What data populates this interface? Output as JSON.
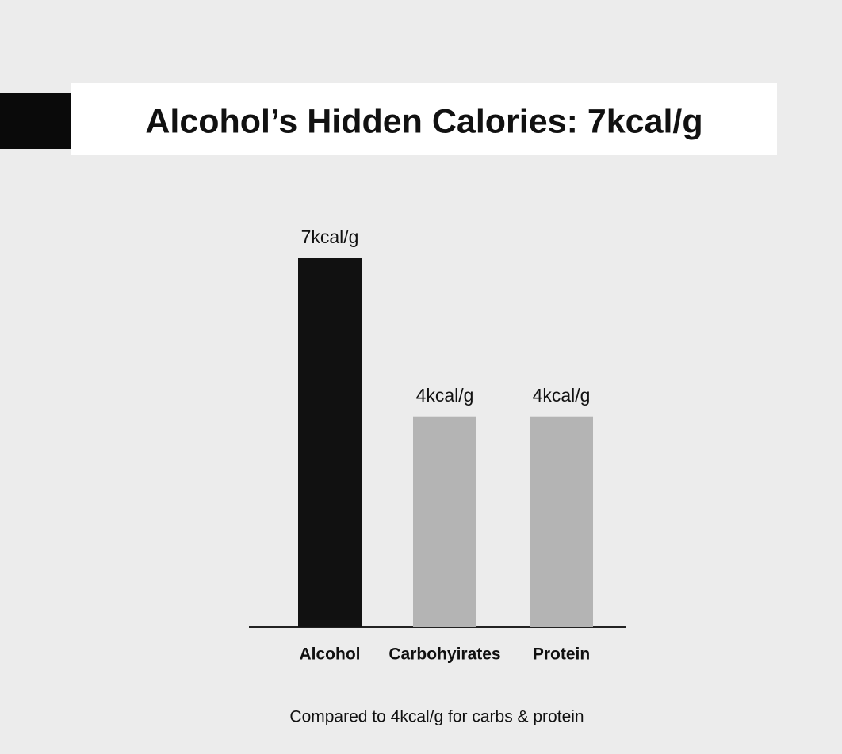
{
  "chart_data": {
    "type": "bar",
    "title": "Alcohol’s Hidden Calories: 7kcal/g",
    "categories": [
      "Alcohol",
      "Carbohyirates",
      "Protein"
    ],
    "values": [
      7,
      4,
      4
    ],
    "value_labels": [
      "7kcal/g",
      "4kcal/g",
      "4kcal/g"
    ],
    "colors": [
      "#111111",
      "#b4b4b4",
      "#b4b4b4"
    ],
    "footnote": "Compared to 4kcal/g for carbs & protein"
  }
}
